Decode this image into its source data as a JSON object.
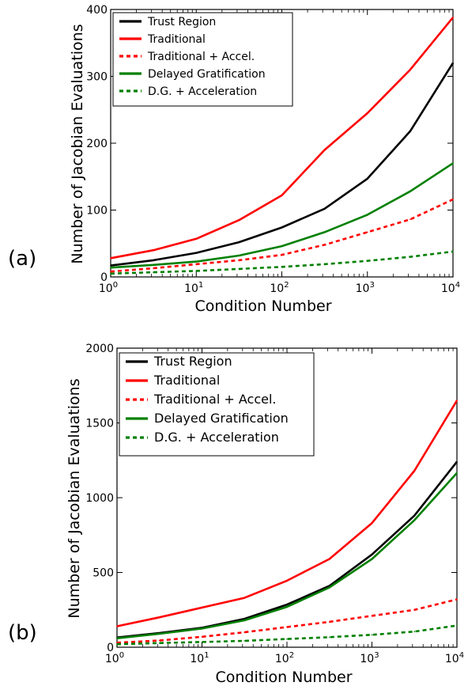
{
  "panels": [
    {
      "label": "(a)"
    },
    {
      "label": "(b)"
    }
  ],
  "legend_entries": [
    {
      "text": "Trust Region",
      "color": "#000000",
      "dash": "solid"
    },
    {
      "text": "Traditional",
      "color": "#ff0000",
      "dash": "solid"
    },
    {
      "text": "Traditional + Accel.",
      "color": "#ff0000",
      "dash": "dashed"
    },
    {
      "text": "Delayed Gratification",
      "color": "#008000",
      "dash": "solid"
    },
    {
      "text": "D.G. + Acceleration",
      "color": "#008000",
      "dash": "dashed"
    }
  ],
  "chart_data": [
    {
      "type": "line",
      "panel": "(a)",
      "xlabel": "Condition Number",
      "ylabel": "Number of Jacobian Evaluations",
      "xscale": "log",
      "xlim": [
        1,
        10000
      ],
      "ylim": [
        0,
        400
      ],
      "x_ticks": [
        1,
        10,
        100,
        1000,
        10000
      ],
      "x_tick_labels": [
        [
          "10",
          "0"
        ],
        [
          "10",
          "1"
        ],
        [
          "10",
          "2"
        ],
        [
          "10",
          "3"
        ],
        [
          "10",
          "4"
        ]
      ],
      "y_ticks": [
        0,
        100,
        200,
        300,
        400
      ],
      "y_tick_labels": [
        "0",
        "100",
        "200",
        "300",
        "400"
      ],
      "grid": false,
      "legend_position": "upper-left",
      "x": [
        1,
        3.16,
        10,
        31.6,
        100,
        316,
        1000,
        3162,
        10000
      ],
      "series": [
        {
          "name": "Trust Region",
          "color": "#000000",
          "dash": "solid",
          "values": [
            17,
            25,
            36,
            52,
            74,
            102,
            147,
            218,
            320
          ]
        },
        {
          "name": "Traditional",
          "color": "#ff0000",
          "dash": "solid",
          "values": [
            28,
            40,
            57,
            85,
            122,
            190,
            245,
            310,
            388
          ]
        },
        {
          "name": "Traditional + Accel.",
          "color": "#ff0000",
          "dash": "dashed",
          "values": [
            8,
            13,
            19,
            25,
            33,
            48,
            67,
            86,
            116
          ]
        },
        {
          "name": "Delayed Gratification",
          "color": "#008000",
          "dash": "solid",
          "values": [
            14,
            18,
            23,
            32,
            46,
            67,
            93,
            128,
            170
          ]
        },
        {
          "name": "D.G. + Acceleration",
          "color": "#008000",
          "dash": "dashed",
          "values": [
            5,
            7,
            9,
            12,
            15,
            19,
            24,
            30,
            38
          ]
        }
      ]
    },
    {
      "type": "line",
      "panel": "(b)",
      "xlabel": "Condition Number",
      "ylabel": "Number of Jacobian Evaluations",
      "xscale": "log",
      "xlim": [
        1,
        10000
      ],
      "ylim": [
        0,
        2000
      ],
      "x_ticks": [
        1,
        10,
        100,
        1000,
        10000
      ],
      "x_tick_labels": [
        [
          "10",
          "0"
        ],
        [
          "10",
          "1"
        ],
        [
          "10",
          "2"
        ],
        [
          "10",
          "3"
        ],
        [
          "10",
          "4"
        ]
      ],
      "y_ticks": [
        0,
        500,
        1000,
        1500,
        2000
      ],
      "y_tick_labels": [
        "0",
        "500",
        "1000",
        "1500",
        "2000"
      ],
      "grid": false,
      "legend_position": "upper-left",
      "x": [
        1,
        3.16,
        10,
        31.6,
        100,
        316,
        1000,
        3162,
        10000
      ],
      "series": [
        {
          "name": "Trust Region",
          "color": "#000000",
          "dash": "solid",
          "values": [
            65,
            95,
            130,
            190,
            285,
            410,
            620,
            880,
            1240
          ]
        },
        {
          "name": "Traditional",
          "color": "#ff0000",
          "dash": "solid",
          "values": [
            140,
            200,
            265,
            330,
            445,
            590,
            830,
            1180,
            1650
          ]
        },
        {
          "name": "Traditional + Accel.",
          "color": "#ff0000",
          "dash": "dashed",
          "values": [
            30,
            45,
            70,
            100,
            135,
            170,
            210,
            250,
            320
          ]
        },
        {
          "name": "Delayed Gratification",
          "color": "#008000",
          "dash": "solid",
          "values": [
            60,
            90,
            125,
            180,
            270,
            400,
            590,
            850,
            1165
          ]
        },
        {
          "name": "D.G. + Acceleration",
          "color": "#008000",
          "dash": "dashed",
          "values": [
            20,
            28,
            35,
            43,
            55,
            67,
            83,
            105,
            145
          ]
        }
      ]
    }
  ]
}
